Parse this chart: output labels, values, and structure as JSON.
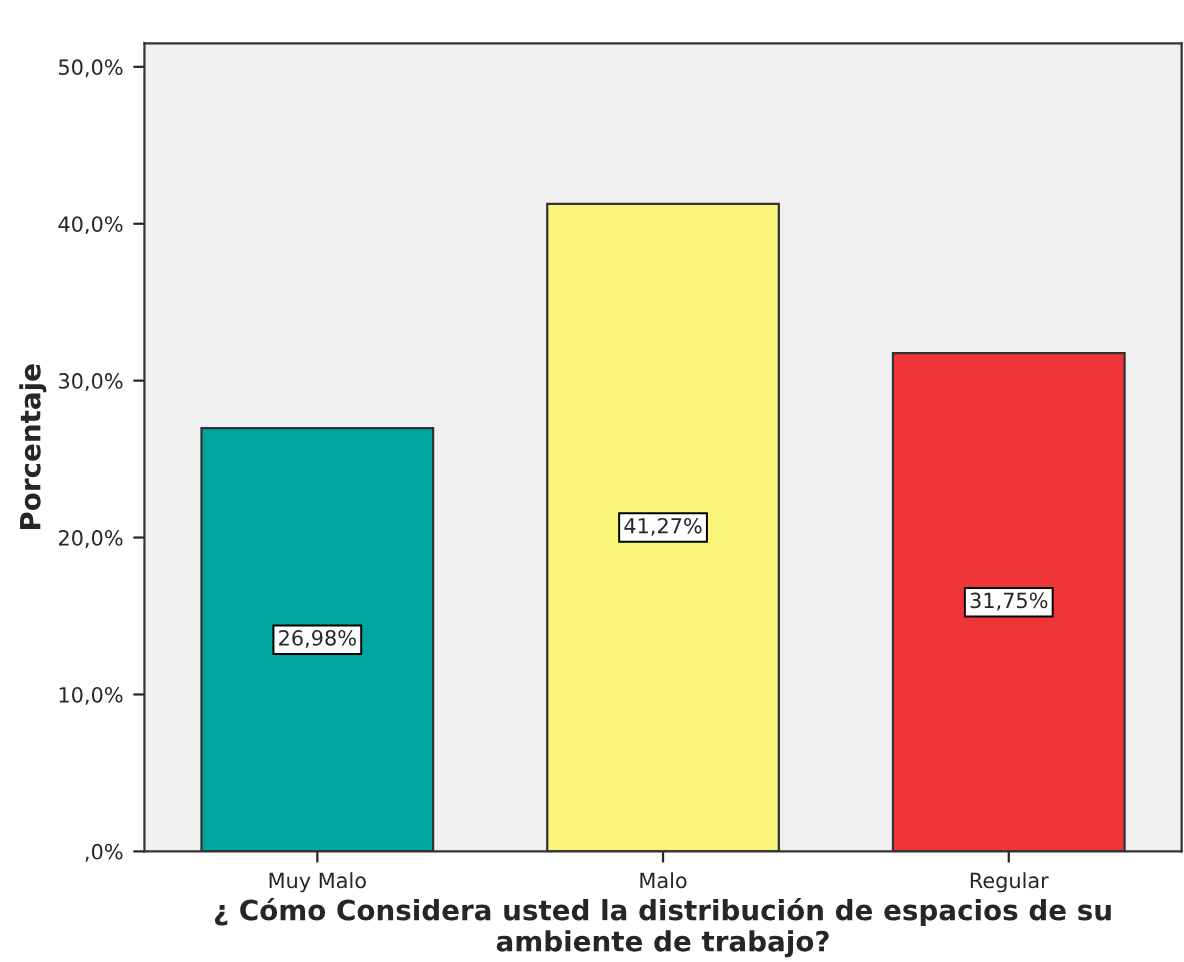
{
  "chart_data": {
    "type": "bar",
    "xlabel": "¿ Cómo Considera usted la distribución de espacios de su ambiente de trabajo?",
    "ylabel": "Porcentaje",
    "categories": [
      "Muy Malo",
      "Malo",
      "Regular"
    ],
    "values": [
      26.98,
      41.27,
      31.75
    ],
    "colors": [
      "#00a59e",
      "#f9f57a",
      "#ef343a"
    ],
    "value_labels": [
      "26,98%",
      "41,27%",
      "31,75%"
    ],
    "ylim": [
      0,
      51.5
    ],
    "yticks": [
      {
        "value": 0,
        "label": ",0%"
      },
      {
        "value": 10,
        "label": "10,0%"
      },
      {
        "value": 20,
        "label": "20,0%"
      },
      {
        "value": 30,
        "label": "30,0%"
      },
      {
        "value": 40,
        "label": "40,0%"
      },
      {
        "value": 50,
        "label": "50,0%"
      }
    ],
    "grid": false,
    "legend": false
  }
}
